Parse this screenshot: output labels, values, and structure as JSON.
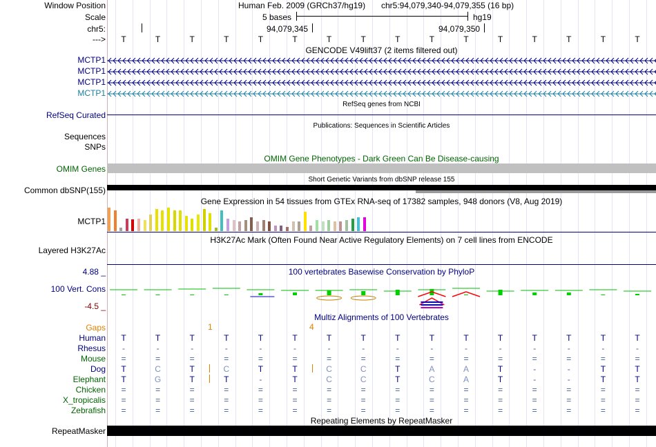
{
  "labels": {
    "window_position": "Window Position",
    "scale": "Scale",
    "chr": "chr5:",
    "arrow": "--->",
    "gencode_rows": [
      "MCTP1",
      "MCTP1",
      "MCTP1",
      "MCTP1"
    ],
    "refseq": "RefSeq Curated",
    "sequences": "Sequences",
    "snps": "SNPs",
    "omim": "OMIM Genes",
    "dbsnp": "Common dbSNP(155)",
    "gtex": "MCTP1",
    "h3k27ac": "Layered H3K27Ac",
    "cons_top": "4.88 _",
    "cons_label": "100 Vert. Cons",
    "cons_bottom": "-4.5 _",
    "gaps": "Gaps",
    "species": [
      "Human",
      "Rhesus",
      "Mouse",
      "Dog",
      "Elephant",
      "Chicken",
      "X_tropicalis",
      "Zebrafish"
    ],
    "repeatmasker": "RepeatMasker"
  },
  "header": {
    "assembly": "Human Feb. 2009 (GRCh37/hg19)",
    "position": "chr5:94,079,340-94,079,355 (16 bp)",
    "scale_text": "5 bases",
    "scale_db": "hg19",
    "coord1": "94,079,345",
    "coord2": "94,079,350"
  },
  "bases": [
    "T",
    "T",
    "T",
    "T",
    "T",
    "T",
    "T",
    "T",
    "T",
    "T",
    "T",
    "T",
    "T",
    "T",
    "T",
    "T"
  ],
  "tracks": {
    "gencode_title": "GENCODE V49lift37 (2 items filtered out)",
    "refseq_title": "RefSeq genes from NCBI",
    "publications_title": "Publications: Sequences in Scientific Articles",
    "omim_title": "OMIM Gene Phenotypes - Dark Green Can Be Disease-causing",
    "dbsnp_title": "Short Genetic Variants from dbSNP release 155",
    "gtex_title": "Gene Expression in 54 tissues from GTEx RNA-seq of 17382 samples, 948 donors (V8, Aug 2019)",
    "h3k27ac_title": "H3K27Ac Mark (Often Found Near Active Regulatory Elements) on 7 cell lines from ENCODE",
    "cons_title": "100 vertebrates Basewise Conservation by PhyloP",
    "multiz_title": "Multiz Alignments of 100 Vertebrates",
    "repeat_title": "Repeating Elements by RepeatMasker"
  },
  "gaps": [
    "1",
    "4"
  ],
  "alignment": {
    "Human": [
      "T",
      "T",
      "T",
      "T",
      "T",
      "T",
      "T",
      "T",
      "T",
      "T",
      "T",
      "T",
      "T",
      "T",
      "T",
      "T"
    ],
    "Rhesus": [
      "-",
      "-",
      "-",
      "-",
      "-",
      "-",
      "-",
      "-",
      "-",
      "-",
      "-",
      "-",
      "-",
      "-",
      "-",
      "-"
    ],
    "Mouse": [
      "=",
      "=",
      "=",
      "=",
      "=",
      "=",
      "=",
      "=",
      "=",
      "=",
      "=",
      "=",
      "=",
      "=",
      "=",
      "="
    ],
    "Dog": [
      "T",
      "C",
      "T",
      "C",
      "T",
      "T",
      "C",
      "C",
      "T",
      "A",
      "A",
      "T",
      "-",
      "-",
      "T",
      "T"
    ],
    "Elephant": [
      "T",
      "G",
      "T",
      "T",
      "-",
      "T",
      "C",
      "C",
      "T",
      "C",
      "A",
      "T",
      "-",
      "-",
      "T",
      "T"
    ],
    "Chicken": [
      "=",
      "=",
      "=",
      "=",
      "=",
      "=",
      "=",
      "=",
      "=",
      "=",
      "=",
      "=",
      "=",
      "=",
      "=",
      "="
    ],
    "X_tropicalis": [
      "=",
      "=",
      "=",
      "=",
      "=",
      "=",
      "=",
      "=",
      "=",
      "=",
      "=",
      "=",
      "=",
      "=",
      "=",
      "="
    ],
    "Zebrafish": [
      "=",
      "=",
      "=",
      "=",
      "=",
      "=",
      "=",
      "=",
      "=",
      "=",
      "=",
      "=",
      "=",
      "=",
      "=",
      "="
    ]
  },
  "colors": {
    "track_label": "#000080",
    "omim": "#006400",
    "gaps": "#e08000",
    "cons_top": "#000080",
    "cons_bottom": "#800000",
    "mctp1_last": "#1a7fa0",
    "omim_bar": "#c0c0c0",
    "dbsnp_bar": "#000000"
  }
}
